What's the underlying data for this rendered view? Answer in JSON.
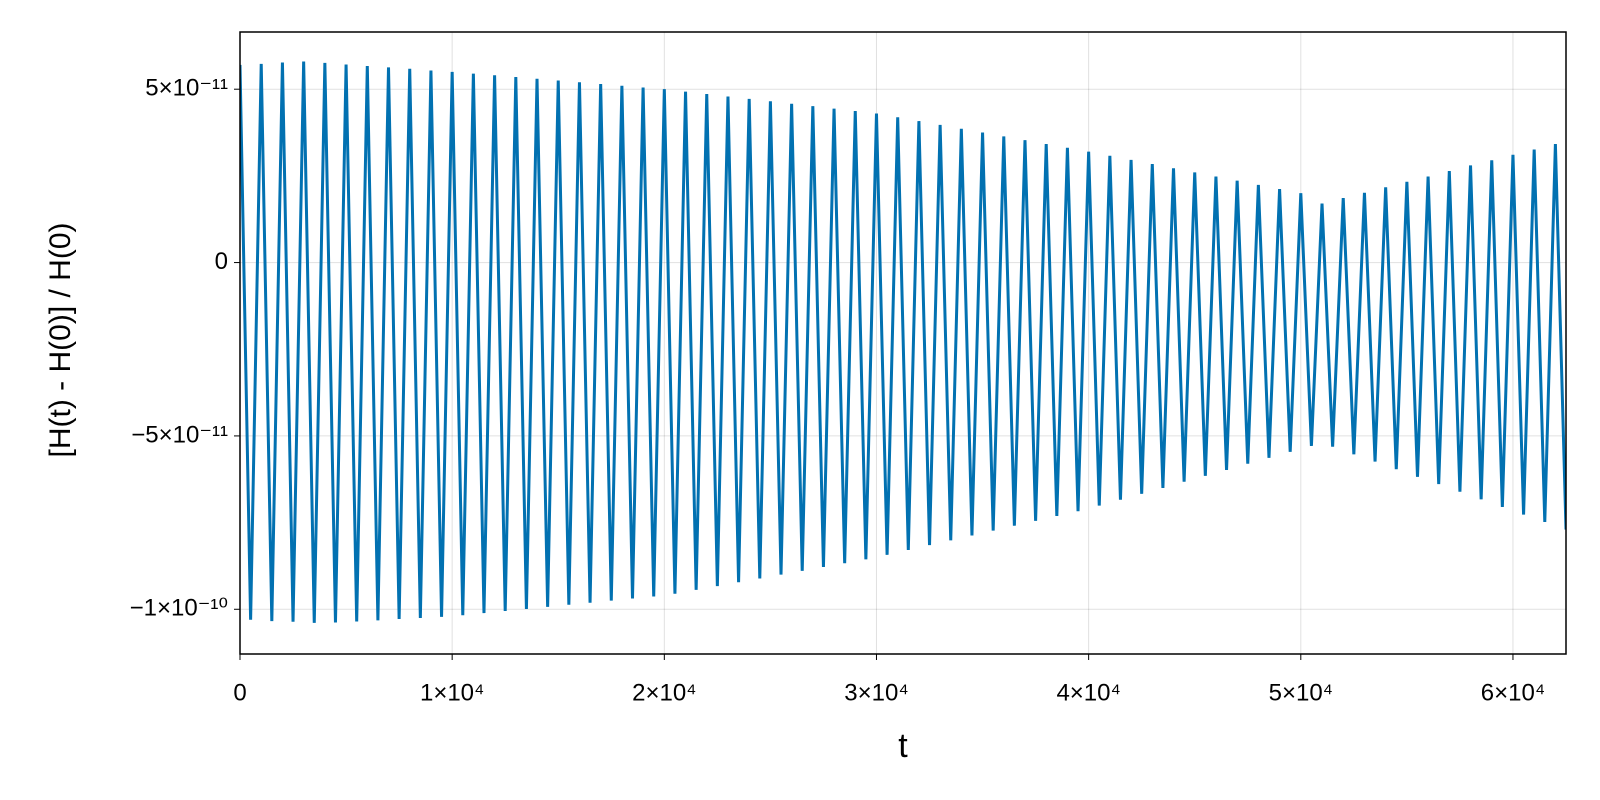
{
  "chart_data": {
    "type": "line",
    "xlabel": "t",
    "ylabel": "[H(t) - H(0)] / H(0)",
    "color": "#0271b1",
    "grid": true,
    "xlim": [
      0,
      62500
    ],
    "ylim": [
      -1.129e-10,
      6.65e-11
    ],
    "xticks": [
      0,
      {
        "value": 10000,
        "label": "1×10⁴"
      },
      {
        "value": 20000,
        "label": "2×10⁴"
      },
      {
        "value": 30000,
        "label": "3×10⁴"
      },
      {
        "value": 40000,
        "label": "4×10⁴"
      },
      {
        "value": 50000,
        "label": "5×10⁴"
      },
      {
        "value": 60000,
        "label": "6×10⁴"
      }
    ],
    "yticks": [
      {
        "value": -1e-10,
        "label": "−1×10⁻¹⁰"
      },
      {
        "value": -5e-11,
        "label": "−5×10⁻¹¹"
      },
      0,
      {
        "value": 5e-11,
        "label": "5×10⁻¹¹"
      }
    ],
    "x": [
      0,
      500,
      1000,
      1500,
      2000,
      2500,
      3000,
      3500,
      4000,
      4500,
      5000,
      5500,
      6000,
      6500,
      7000,
      7500,
      8000,
      8500,
      9000,
      9500,
      10000,
      10500,
      11000,
      11500,
      12000,
      12500,
      13000,
      13500,
      14000,
      14500,
      15000,
      15500,
      16000,
      16500,
      17000,
      17500,
      18000,
      18500,
      19000,
      19500,
      20000,
      20500,
      21000,
      21500,
      22000,
      22500,
      23000,
      23500,
      24000,
      24500,
      25000,
      25500,
      26000,
      26500,
      27000,
      27500,
      28000,
      28500,
      29000,
      29500,
      30000,
      30500,
      31000,
      31500,
      32000,
      32500,
      33000,
      33500,
      34000,
      34500,
      35000,
      35500,
      36000,
      36500,
      37000,
      37500,
      38000,
      38500,
      39000,
      39500,
      40000,
      40500,
      41000,
      41500,
      42000,
      42500,
      43000,
      43500,
      44000,
      44500,
      45000,
      45500,
      46000,
      46500,
      47000,
      47500,
      48000,
      48500,
      49000,
      49500,
      50000,
      50500,
      51000,
      51500,
      52000,
      52500,
      53000,
      53500,
      54000,
      54500,
      55000,
      55500,
      56000,
      56500,
      57000,
      57500,
      58000,
      58500,
      59000,
      59500,
      60000,
      60500,
      61000,
      61500,
      62000,
      62500
    ],
    "values": [
      5.7e-11,
      -1.03e-10,
      5.73e-11,
      -1.034e-10,
      5.77e-11,
      -1.036e-10,
      5.8e-11,
      -1.039e-10,
      5.76e-11,
      -1.038e-10,
      5.71e-11,
      -1.035e-10,
      5.67e-11,
      -1.032e-10,
      5.63e-11,
      -1.028e-10,
      5.59e-11,
      -1.025e-10,
      5.54e-11,
      -1.022e-10,
      5.5e-11,
      -1.017e-10,
      5.45e-11,
      -1.011e-10,
      5.4e-11,
      -1.005e-10,
      5.35e-11,
      -9.99e-11,
      5.3e-11,
      -9.93e-11,
      5.25e-11,
      -9.87e-11,
      5.2e-11,
      -9.81e-11,
      5.15e-11,
      -9.75e-11,
      5.1e-11,
      -9.69e-11,
      5.05e-11,
      -9.63e-11,
      5e-11,
      -9.55e-11,
      4.93e-11,
      -9.44e-11,
      4.86e-11,
      -9.33e-11,
      4.79e-11,
      -9.22e-11,
      4.72e-11,
      -9.11e-11,
      4.65e-11,
      -9e-11,
      4.58e-11,
      -8.89e-11,
      4.51e-11,
      -8.78e-11,
      4.44e-11,
      -8.67e-11,
      4.37e-11,
      -8.56e-11,
      4.3e-11,
      -8.43e-11,
      4.19e-11,
      -8.29e-11,
      4.08e-11,
      -8.15e-11,
      3.97e-11,
      -8.01e-11,
      3.86e-11,
      -7.87e-11,
      3.75e-11,
      -7.73e-11,
      3.64e-11,
      -7.59e-11,
      3.53e-11,
      -7.45e-11,
      3.42e-11,
      -7.31e-11,
      3.31e-11,
      -7.17e-11,
      3.2e-11,
      -7.01e-11,
      3.08e-11,
      -6.84e-11,
      2.96e-11,
      -6.67e-11,
      2.84e-11,
      -6.5e-11,
      2.72e-11,
      -6.32e-11,
      2.6e-11,
      -6.15e-11,
      2.48e-11,
      -5.98e-11,
      2.36e-11,
      -5.8e-11,
      2.24e-11,
      -5.63e-11,
      2.12e-11,
      -5.46e-11,
      2e-11,
      -5.29e-11,
      1.7e-11,
      -5.31e-11,
      1.86e-11,
      -5.53e-11,
      2.01e-11,
      -5.74e-11,
      2.17e-11,
      -5.96e-11,
      2.33e-11,
      -6.18e-11,
      2.48e-11,
      -6.39e-11,
      2.64e-11,
      -6.61e-11,
      2.8e-11,
      -6.83e-11,
      2.95e-11,
      -7.05e-11,
      3.11e-11,
      -7.27e-11,
      3.26e-11,
      -7.48e-11,
      3.42e-11,
      -7.7e-11
    ]
  }
}
